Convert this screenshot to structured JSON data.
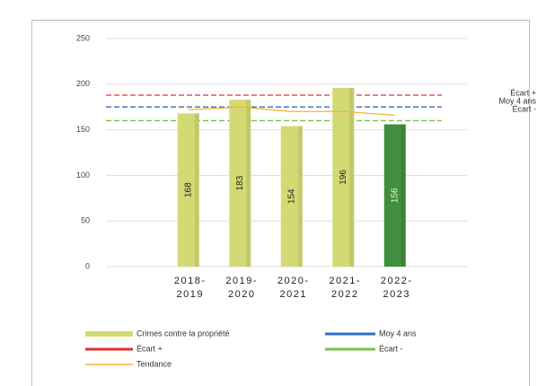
{
  "chart_data": {
    "type": "bar",
    "categories": [
      [
        "2018-",
        "2019"
      ],
      [
        "2019-",
        "2020"
      ],
      [
        "2020-",
        "2021"
      ],
      [
        "2021-",
        "2022"
      ],
      [
        "2022-",
        "2023"
      ]
    ],
    "series": [
      {
        "name": "Crimes contre la propriété",
        "colors": [
          "#d3da74",
          "#d3da74",
          "#d3da74",
          "#d3da74",
          "#3f8f3c"
        ],
        "color": "#d3da74",
        "values": [
          168,
          183,
          154,
          196,
          156
        ]
      }
    ],
    "reference_lines": [
      {
        "name": "Écart +",
        "color": "#e03030",
        "value": 188
      },
      {
        "name": "Moy 4 ans",
        "color": "#2f6fc0",
        "value": 175
      },
      {
        "name": "Écart -",
        "color": "#7cc04a",
        "value": 160
      }
    ],
    "trend": {
      "name": "Tendance",
      "color": "#f2b632",
      "values": [
        172,
        175,
        170,
        170,
        166
      ]
    },
    "ylim": [
      0,
      250
    ],
    "yticks": [
      0,
      50,
      100,
      150,
      200,
      250
    ],
    "grid": true
  }
}
